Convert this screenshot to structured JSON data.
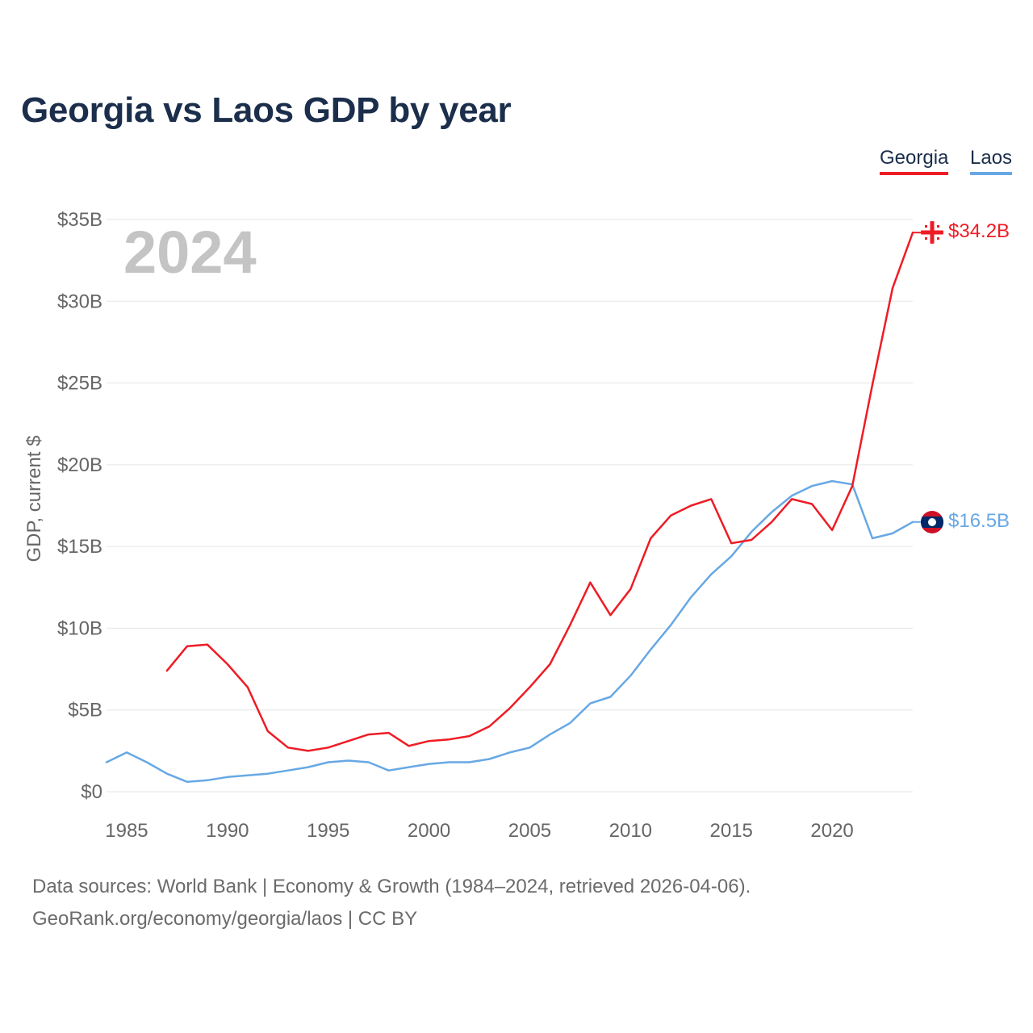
{
  "title": "Georgia vs Laos GDP by year",
  "legend": {
    "georgia": "Georgia",
    "laos": "Laos"
  },
  "year_watermark": "2024",
  "sources": {
    "line1": "Data sources: World Bank | Economy & Growth (1984–2024, retrieved 2026-04-06).",
    "line2": "GeoRank.org/economy/georgia/laos | CC BY"
  },
  "colors": {
    "georgia": "#ee1c25",
    "laos": "#67a8e4",
    "title": "#1b2e4b",
    "grid": "#e6e6e6",
    "tick": "#666666",
    "watermark": "#c4c4c4"
  },
  "chart_data": {
    "type": "line",
    "title": "Georgia vs Laos GDP by year",
    "xlabel": "",
    "ylabel": "GDP, current $",
    "xlim": [
      1984,
      2024
    ],
    "ylim": [
      0,
      35
    ],
    "y_unit": "billion USD",
    "x_ticks": [
      1985,
      1990,
      1995,
      2000,
      2005,
      2010,
      2015,
      2020
    ],
    "y_ticks": [
      0,
      5,
      10,
      15,
      20,
      25,
      30,
      35
    ],
    "y_tick_labels": [
      "$0",
      "$5B",
      "$10B",
      "$15B",
      "$20B",
      "$25B",
      "$30B",
      "$35B"
    ],
    "grid": true,
    "legend_position": "top-right",
    "series": [
      {
        "name": "Georgia",
        "color": "#ee1c25",
        "end_label": "$34.2B",
        "x": [
          1987,
          1988,
          1989,
          1990,
          1991,
          1992,
          1993,
          1994,
          1995,
          1996,
          1997,
          1998,
          1999,
          2000,
          2001,
          2002,
          2003,
          2004,
          2005,
          2006,
          2007,
          2008,
          2009,
          2010,
          2011,
          2012,
          2013,
          2014,
          2015,
          2016,
          2017,
          2018,
          2019,
          2020,
          2021,
          2022,
          2023,
          2024
        ],
        "values": [
          7.4,
          8.9,
          9.0,
          7.8,
          6.4,
          3.7,
          2.7,
          2.5,
          2.7,
          3.1,
          3.5,
          3.6,
          2.8,
          3.1,
          3.2,
          3.4,
          4.0,
          5.1,
          6.4,
          7.8,
          10.2,
          12.8,
          10.8,
          12.4,
          15.5,
          16.9,
          17.5,
          17.9,
          15.2,
          15.4,
          16.5,
          17.9,
          17.6,
          16.0,
          18.7,
          24.9,
          30.8,
          34.2
        ]
      },
      {
        "name": "Laos",
        "color": "#67a8e4",
        "end_label": "$16.5B",
        "x": [
          1984,
          1985,
          1986,
          1987,
          1988,
          1989,
          1990,
          1991,
          1992,
          1993,
          1994,
          1995,
          1996,
          1997,
          1998,
          1999,
          2000,
          2001,
          2002,
          2003,
          2004,
          2005,
          2006,
          2007,
          2008,
          2009,
          2010,
          2011,
          2012,
          2013,
          2014,
          2015,
          2016,
          2017,
          2018,
          2019,
          2020,
          2021,
          2022,
          2023,
          2024
        ],
        "values": [
          1.8,
          2.4,
          1.8,
          1.1,
          0.6,
          0.7,
          0.9,
          1.0,
          1.1,
          1.3,
          1.5,
          1.8,
          1.9,
          1.8,
          1.3,
          1.5,
          1.7,
          1.8,
          1.8,
          2.0,
          2.4,
          2.7,
          3.5,
          4.2,
          5.4,
          5.8,
          7.1,
          8.7,
          10.2,
          11.9,
          13.3,
          14.4,
          15.9,
          17.1,
          18.1,
          18.7,
          19.0,
          18.8,
          15.5,
          15.8,
          16.5
        ]
      }
    ]
  }
}
